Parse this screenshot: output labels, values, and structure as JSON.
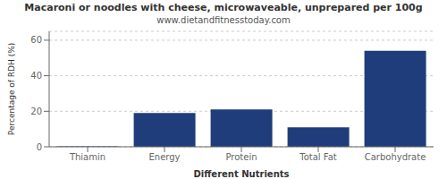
{
  "chart_data": {
    "type": "bar",
    "title": "Macaroni or noodles with cheese, microwaveable, unprepared per 100g",
    "subtitle": "www.dietandfitnesstoday.com",
    "categories": [
      "Thiamin",
      "Energy",
      "Protein",
      "Total Fat",
      "Carbohydrate"
    ],
    "values": [
      0.3,
      19.0,
      21.0,
      11.0,
      54.0
    ],
    "color": "#1f3d7a",
    "xlabel": "Different Nutrients",
    "ylabel": "Percentage of RDH (%)",
    "ylim": [
      0,
      65
    ],
    "yticks": [
      0,
      20,
      40,
      60
    ],
    "grid": true
  }
}
